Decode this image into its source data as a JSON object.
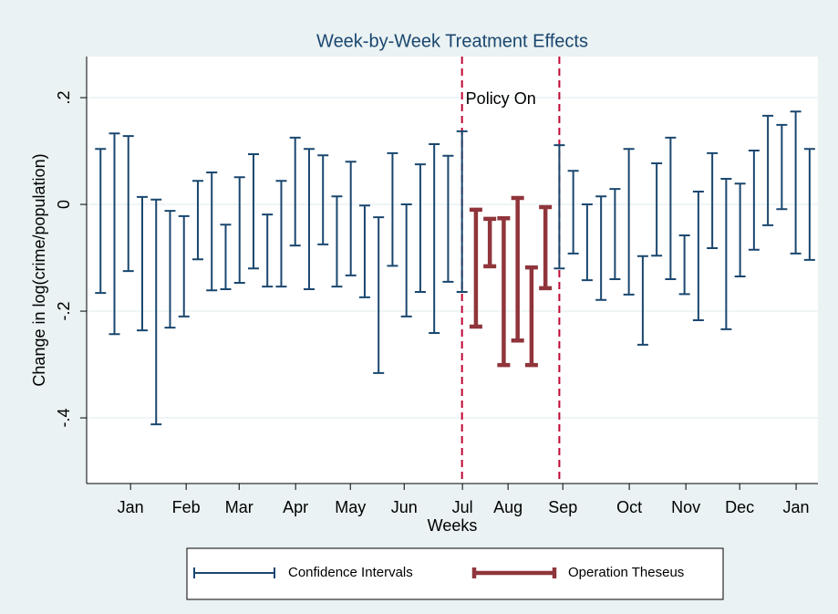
{
  "chart_data": {
    "type": "errorbar",
    "title": "Week-by-Week Treatment Effects",
    "x_label": "Weeks",
    "y_label": "Change in log(crime/population)",
    "xlim": [
      0,
      52.6
    ],
    "ylim": [
      -0.523,
      0.277
    ],
    "xticks": [
      {
        "value": 3.16,
        "label": "Jan"
      },
      {
        "value": 7.16,
        "label": "Feb"
      },
      {
        "value": 10.97,
        "label": "Mar"
      },
      {
        "value": 15.03,
        "label": "Apr"
      },
      {
        "value": 18.97,
        "label": "May"
      },
      {
        "value": 22.84,
        "label": "Jun"
      },
      {
        "value": 27.03,
        "label": "Jul"
      },
      {
        "value": 30.31,
        "label": "Aug"
      },
      {
        "value": 34.25,
        "label": "Sep"
      },
      {
        "value": 39.03,
        "label": "Oct"
      },
      {
        "value": 43.1,
        "label": "Nov"
      },
      {
        "value": 46.97,
        "label": "Dec"
      },
      {
        "value": 51.03,
        "label": "Jan"
      }
    ],
    "yticks": [
      {
        "value": 0.2,
        "label": ".2"
      },
      0,
      {
        "value": -0.2,
        "label": "-.2"
      },
      {
        "value": -0.4,
        "label": "-.4"
      }
    ],
    "grid": true,
    "vlines": [
      27,
      34
    ],
    "vline_color": "#c10534",
    "annotation": "Policy On",
    "series": [
      {
        "name": "Confidence Intervals",
        "color": "#1a476f",
        "x": [
          1,
          2,
          3,
          4,
          5,
          6,
          7,
          8,
          9,
          10,
          11,
          12,
          13,
          14,
          15,
          16,
          17,
          18,
          19,
          20,
          21,
          22,
          23,
          24,
          25,
          26,
          27,
          34,
          35,
          36,
          37,
          38,
          39,
          40,
          41,
          42,
          43,
          44,
          45,
          46,
          47,
          48,
          49,
          50,
          51,
          52
        ],
        "high": [
          0.104,
          0.133,
          0.128,
          0.014,
          0.009,
          -0.012,
          -0.022,
          0.044,
          0.06,
          -0.038,
          0.051,
          0.094,
          -0.019,
          0.044,
          0.125,
          0.104,
          0.092,
          0.015,
          0.08,
          -0.002,
          -0.024,
          0.096,
          0.0,
          0.075,
          0.113,
          0.091,
          0.137,
          0.111,
          0.063,
          0.0,
          0.015,
          0.029,
          0.104,
          -0.097,
          0.077,
          0.125,
          -0.058,
          0.024,
          0.096,
          0.048,
          0.039,
          0.101,
          0.166,
          0.149,
          0.174,
          0.104
        ],
        "low": [
          -0.166,
          -0.243,
          -0.125,
          -0.236,
          -0.412,
          -0.231,
          -0.21,
          -0.103,
          -0.161,
          -0.159,
          -0.147,
          -0.12,
          -0.154,
          -0.154,
          -0.077,
          -0.159,
          -0.075,
          -0.154,
          -0.133,
          -0.174,
          -0.316,
          -0.115,
          -0.21,
          -0.164,
          -0.241,
          -0.145,
          -0.164,
          -0.12,
          -0.092,
          -0.142,
          -0.179,
          -0.14,
          -0.169,
          -0.263,
          -0.096,
          -0.14,
          -0.168,
          -0.217,
          -0.082,
          -0.234,
          -0.135,
          -0.085,
          -0.039,
          -0.009,
          -0.092,
          -0.104
        ]
      },
      {
        "name": "Operation Theseus",
        "color": "#90353b",
        "x": [
          28,
          29,
          30,
          31,
          32,
          33
        ],
        "high": [
          -0.01,
          -0.027,
          -0.026,
          0.012,
          -0.118,
          -0.005
        ],
        "low": [
          -0.229,
          -0.116,
          -0.301,
          -0.255,
          -0.301,
          -0.157
        ]
      }
    ]
  }
}
